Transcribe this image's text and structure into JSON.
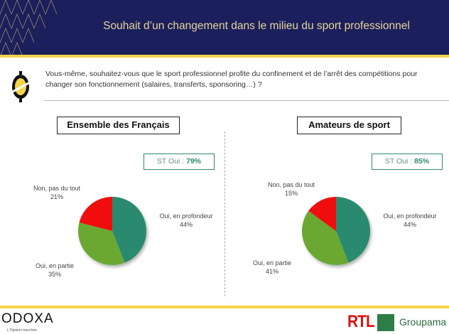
{
  "header": {
    "title": "Souhait d’un changement dans le milieu du sport professionnel"
  },
  "question": "Vous-même, souhaitez-vous que le sport professionnel profite du confinement et de l’arrêt des compétitions pour changer son fonctionnement (salaires, transferts, sponsoring…) ?",
  "colors": {
    "navy": "#1b1f5c",
    "yellow": "#f2d34a",
    "teal": "#2a8a70",
    "green": "#6aa832",
    "red": "#f01010"
  },
  "chart_data": [
    {
      "type": "pie",
      "title": "Ensemble des Français",
      "summary_label": "ST Oui : ",
      "summary_value": "79%",
      "slices": [
        {
          "label": "Oui, en profondeur",
          "value": 44,
          "text": "44%"
        },
        {
          "label": "Oui, en partie",
          "value": 35,
          "text": "35%"
        },
        {
          "label": "Non, pas du tout",
          "value": 21,
          "text": "21%"
        }
      ]
    },
    {
      "type": "pie",
      "title": "Amateurs de sport",
      "summary_label": "ST Oui : ",
      "summary_value": "85%",
      "slices": [
        {
          "label": "Oui, en profondeur",
          "value": 44,
          "text": "44%"
        },
        {
          "label": "Oui, en partie",
          "value": 41,
          "text": "41%"
        },
        {
          "label": "Non, pas du tout",
          "value": 15,
          "text": "15%"
        }
      ]
    }
  ],
  "footer": {
    "logo": "ODOXA",
    "tagline": "L'Opinion tranchée",
    "partner1": "RTL",
    "partner2": "Groupama"
  }
}
